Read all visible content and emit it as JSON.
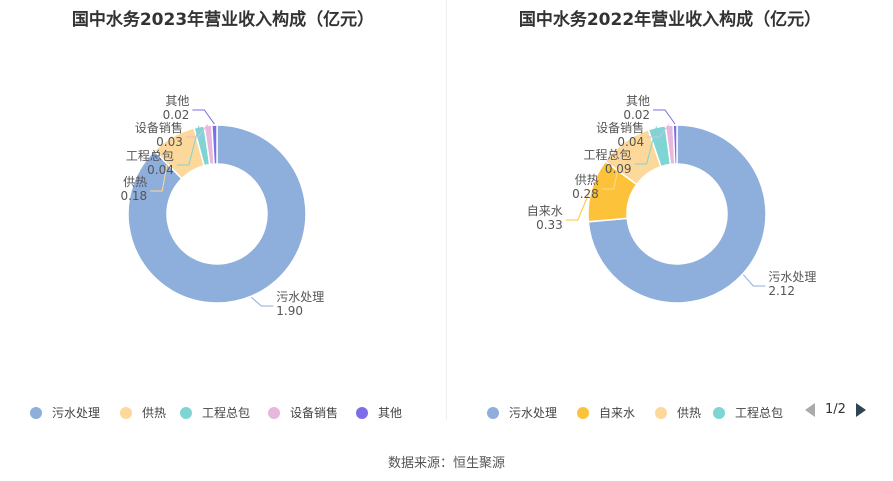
{
  "source": "数据来源：恒生聚源",
  "pager": {
    "text": "1/2"
  },
  "chart_data": [
    {
      "type": "pie",
      "title": "国中水务2023年营业收入构成（亿元）",
      "categories": [
        "污水处理",
        "供热",
        "工程总包",
        "设备销售",
        "其他"
      ],
      "values": [
        1.9,
        0.18,
        0.04,
        0.03,
        0.02
      ],
      "value_labels": [
        "1.90",
        "0.18",
        "0.04",
        "0.03",
        "0.02"
      ],
      "colors": [
        "#8eaedb",
        "#fcd89a",
        "#7fd4d4",
        "#e8b7de",
        "#7b6ee8"
      ],
      "legend": [
        "污水处理",
        "供热",
        "工程总包",
        "设备销售",
        "其他"
      ],
      "legend_position": "bottom"
    },
    {
      "type": "pie",
      "title": "国中水务2022年营业收入构成（亿元）",
      "categories": [
        "污水处理",
        "自来水",
        "供热",
        "工程总包",
        "设备销售",
        "其他"
      ],
      "values": [
        2.12,
        0.33,
        0.28,
        0.09,
        0.04,
        0.02
      ],
      "value_labels": [
        "2.12",
        "0.33",
        "0.28",
        "0.09",
        "0.04",
        "0.02"
      ],
      "colors": [
        "#8eaedb",
        "#fcc33a",
        "#fcd89a",
        "#7fd4d4",
        "#e8b7de",
        "#7b6ee8"
      ],
      "legend": [
        "污水处理",
        "自来水",
        "供热",
        "工程总包"
      ],
      "legend_position": "bottom"
    }
  ]
}
